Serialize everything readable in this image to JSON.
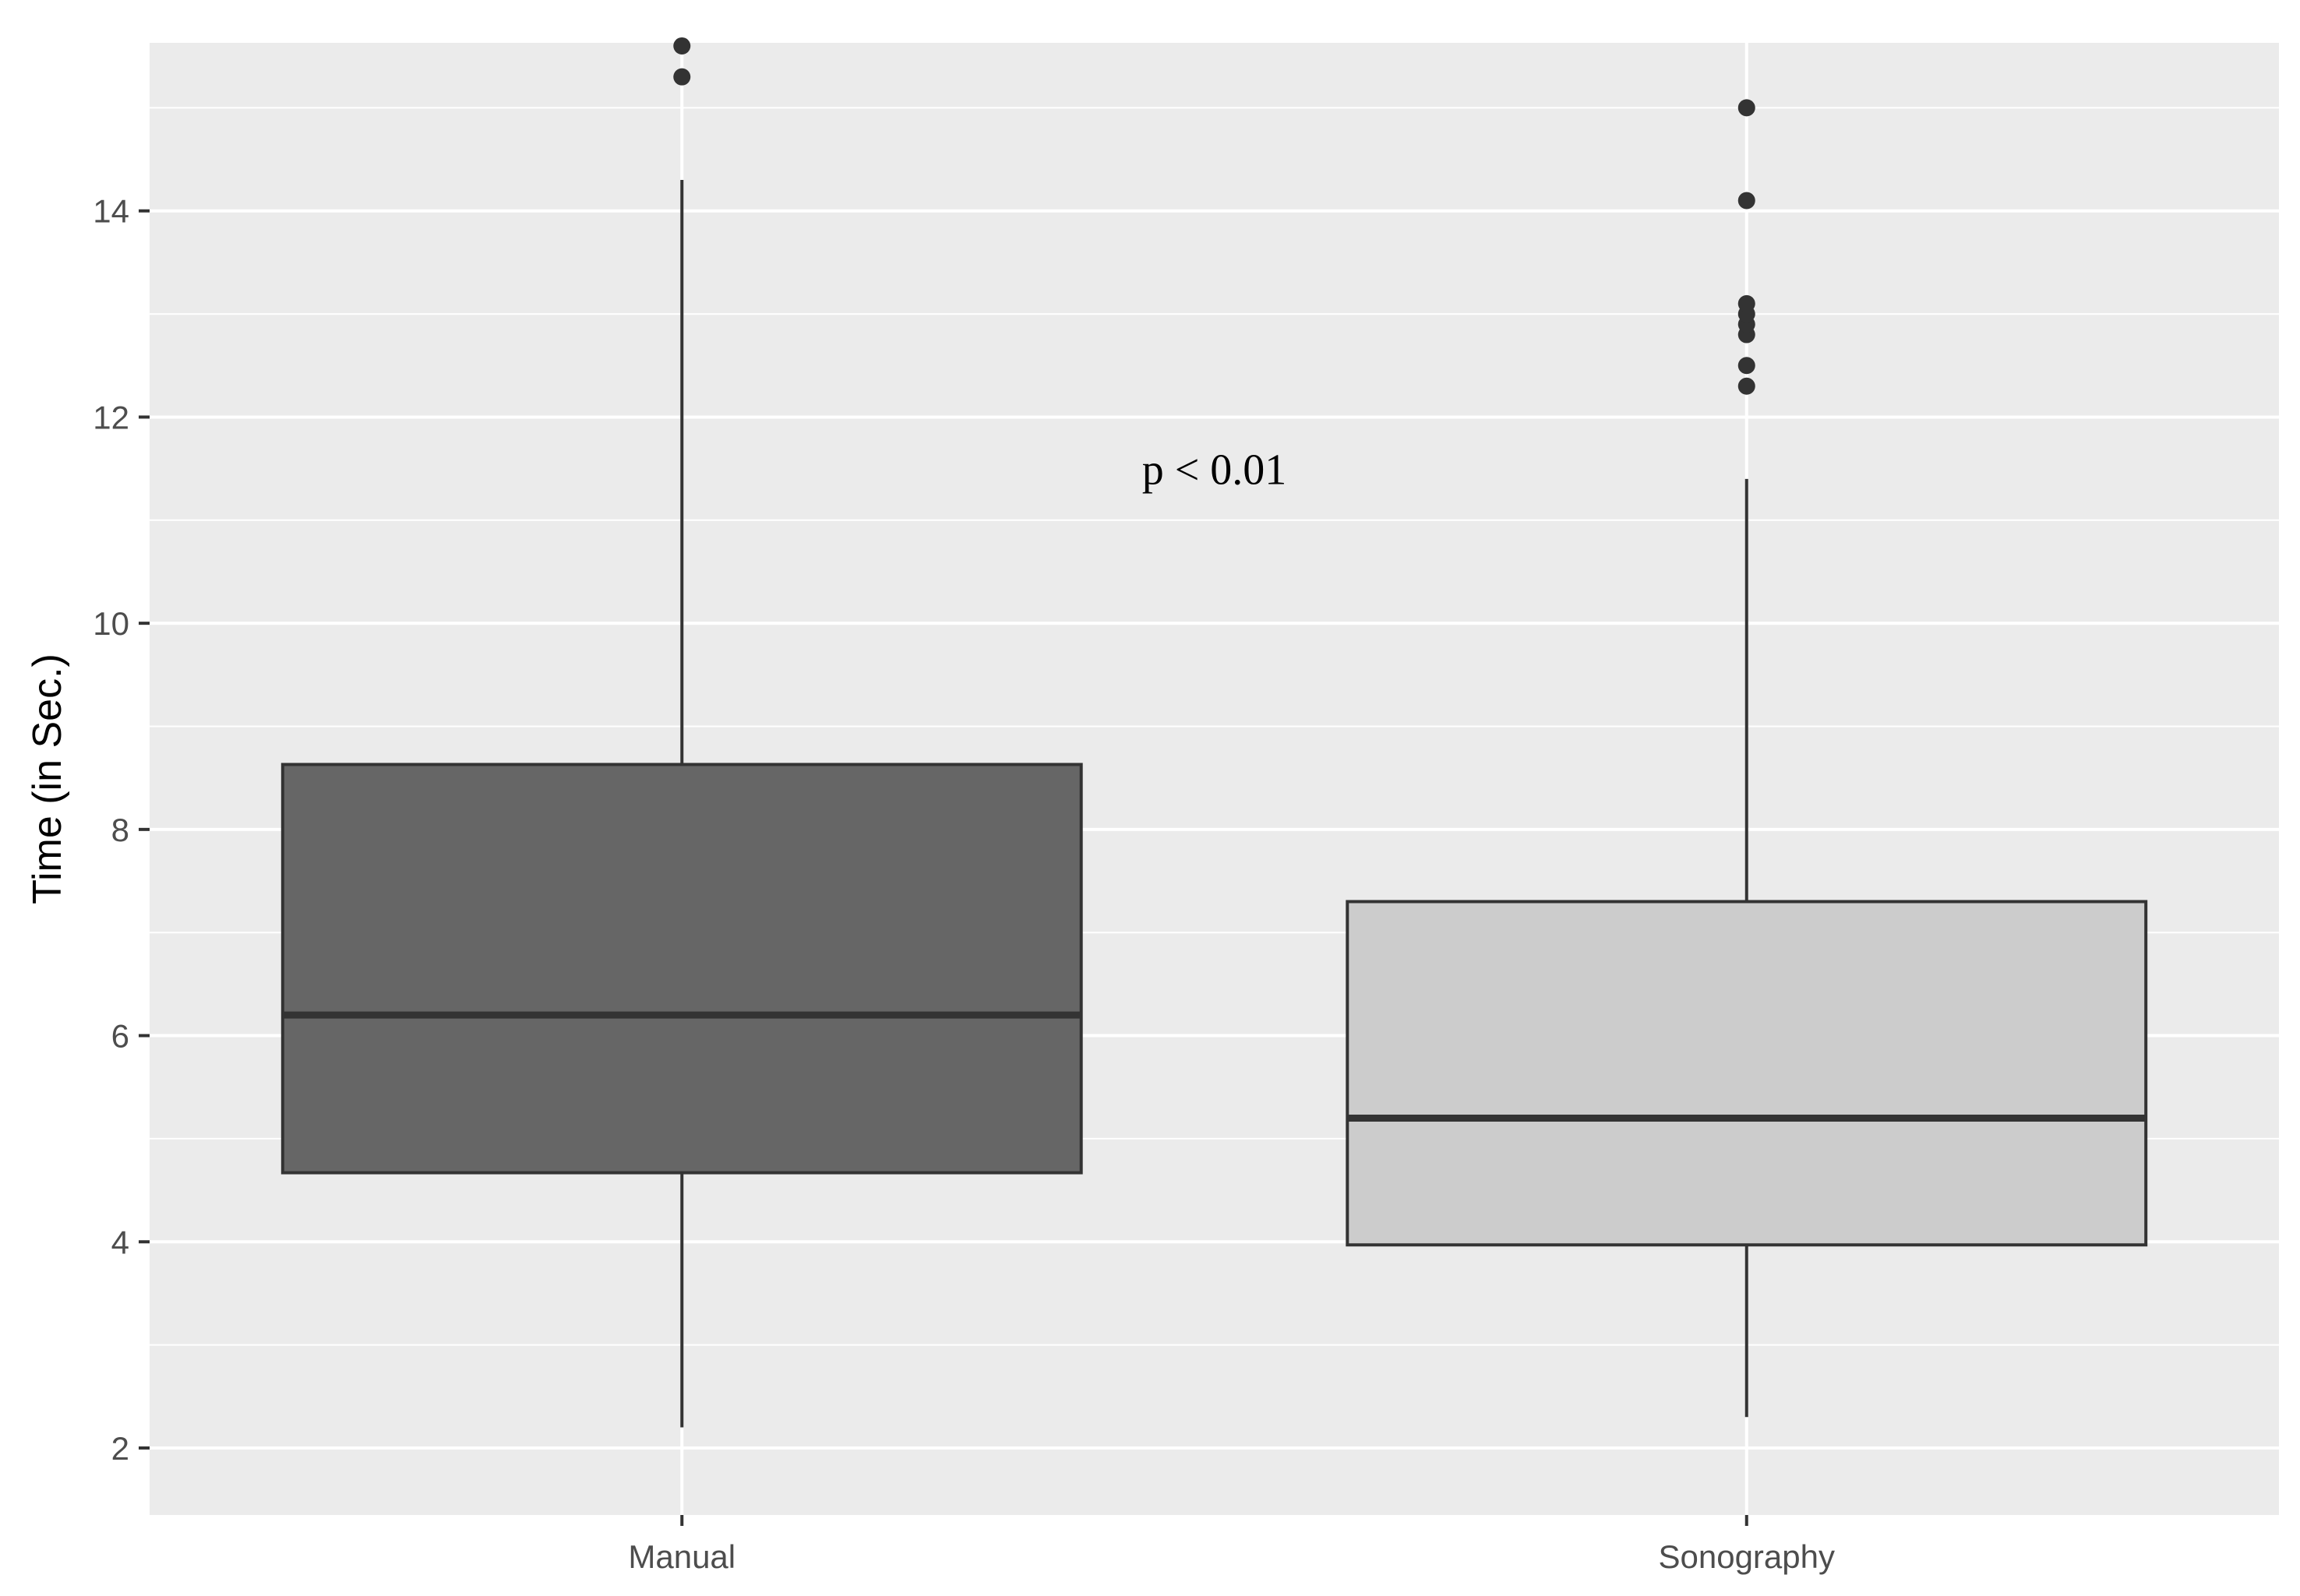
{
  "chart_data": {
    "type": "boxplot",
    "title": "",
    "xlabel": "",
    "ylabel": "Time (in Sec.)",
    "ylim": [
      1.35,
      15.63
    ],
    "yticks": [
      2,
      4,
      6,
      8,
      10,
      12,
      14
    ],
    "grid": true,
    "legend": "none",
    "panel_background": "#ebebeb",
    "grid_color": "#ffffff",
    "annotation": {
      "text": "p < 0.01",
      "x": 1.5,
      "y": 11.5
    },
    "categories": [
      "Manual",
      "Sonography"
    ],
    "boxes": [
      {
        "name": "Manual",
        "whisker_low": 2.2,
        "q1": 4.67,
        "median": 6.2,
        "q3": 8.63,
        "whisker_high": 14.3,
        "outliers": [
          15.3,
          15.6
        ],
        "fill": "#666666"
      },
      {
        "name": "Sonography",
        "whisker_low": 2.3,
        "q1": 3.97,
        "median": 5.2,
        "q3": 7.3,
        "whisker_high": 11.4,
        "outliers": [
          12.3,
          12.5,
          12.8,
          12.9,
          13.0,
          13.1,
          14.1,
          15.0
        ],
        "fill": "#cccccc"
      }
    ]
  }
}
